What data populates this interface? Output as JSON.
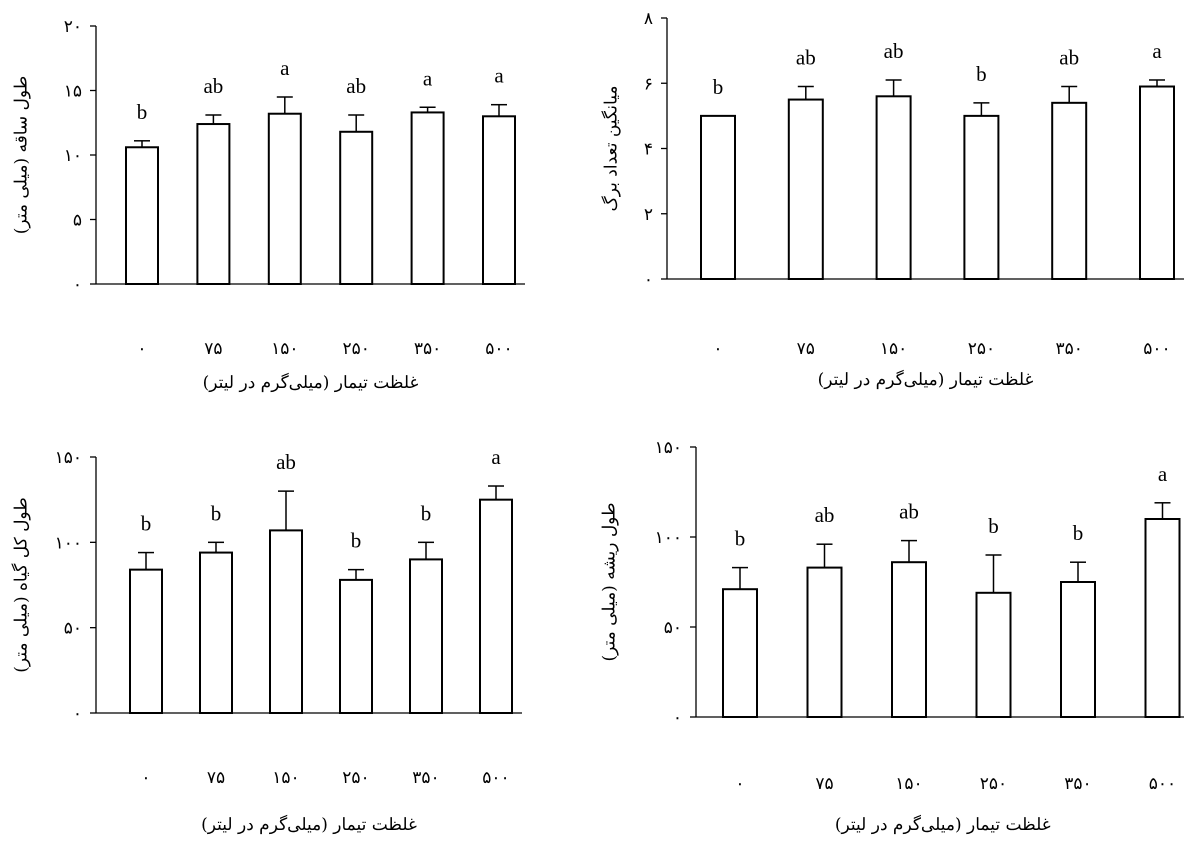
{
  "colors": {
    "bar_fill": "#ffffff",
    "stroke": "#000000"
  },
  "chart_data": [
    {
      "type": "bar",
      "xlabel": "غلظت تیمار (میلی‌گرم در لیتر)",
      "ylabel": "طول ساقه (میلی متر)",
      "ylim": [
        0,
        20
      ],
      "yticks": [
        0,
        5,
        10,
        15,
        20
      ],
      "ytick_labels": [
        "۰",
        "۵",
        "۱۰",
        "۱۵",
        "۲۰"
      ],
      "categories": [
        "۰",
        "۷۵",
        "۱۵۰",
        "۲۵۰",
        "۳۵۰",
        "۵۰۰"
      ],
      "values": [
        10.6,
        12.4,
        13.2,
        11.8,
        13.3,
        13.0
      ],
      "errors": [
        0.5,
        0.7,
        1.3,
        1.3,
        0.4,
        0.9
      ],
      "labels": [
        "b",
        "ab",
        "a",
        "ab",
        "a",
        "a"
      ],
      "grid": false
    },
    {
      "type": "bar",
      "xlabel": "غلظت تیمار (میلی‌گرم در لیتر)",
      "ylabel": "میانگین تعداد برگ",
      "ylim": [
        0,
        8
      ],
      "yticks": [
        0,
        2,
        4,
        6,
        8
      ],
      "ytick_labels": [
        "۰",
        "۲",
        "۴",
        "۶",
        "۸"
      ],
      "categories": [
        "۰",
        "۷۵",
        "۱۵۰",
        "۲۵۰",
        "۳۵۰",
        "۵۰۰"
      ],
      "values": [
        5.0,
        5.5,
        5.6,
        5.0,
        5.4,
        5.9
      ],
      "errors": [
        0.0,
        0.4,
        0.5,
        0.4,
        0.5,
        0.2
      ],
      "labels": [
        "b",
        "ab",
        "ab",
        "b",
        "ab",
        "a"
      ],
      "grid": false
    },
    {
      "type": "bar",
      "xlabel": "غلظت تیمار (میلی‌گرم در لیتر)",
      "ylabel": "طول کل گیاه (میلی متر)",
      "ylim": [
        0,
        150
      ],
      "yticks": [
        0,
        50,
        100,
        150
      ],
      "ytick_labels": [
        "۰",
        "۵۰",
        "۱۰۰",
        "۱۵۰"
      ],
      "categories": [
        "۰",
        "۷۵",
        "۱۵۰",
        "۲۵۰",
        "۳۵۰",
        "۵۰۰"
      ],
      "values": [
        84,
        94,
        107,
        78,
        90,
        125
      ],
      "errors": [
        10,
        6,
        23,
        6,
        10,
        8
      ],
      "labels": [
        "b",
        "b",
        "ab",
        "b",
        "b",
        "a"
      ],
      "grid": false
    },
    {
      "type": "bar",
      "xlabel": "غلظت تیمار (میلی‌گرم در لیتر)",
      "ylabel": "طول ریشه (میلی متر)",
      "ylim": [
        0,
        150
      ],
      "yticks": [
        0,
        50,
        100,
        150
      ],
      "ytick_labels": [
        "۰",
        "۵۰",
        "۱۰۰",
        "۱۵۰"
      ],
      "categories": [
        "۰",
        "۷۵",
        "۱۵۰",
        "۲۵۰",
        "۳۵۰",
        "۵۰۰"
      ],
      "values": [
        71,
        83,
        86,
        69,
        75,
        110
      ],
      "errors": [
        12,
        13,
        12,
        21,
        11,
        9
      ],
      "labels": [
        "b",
        "ab",
        "ab",
        "b",
        "b",
        "a"
      ],
      "grid": false
    }
  ]
}
